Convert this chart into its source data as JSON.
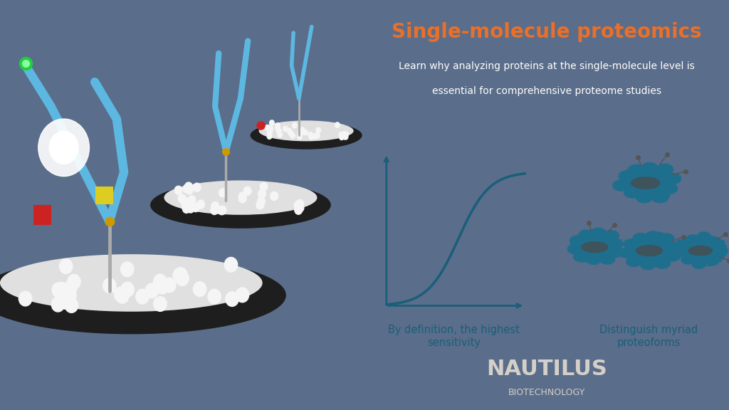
{
  "title": "Single-molecule proteomics",
  "subtitle_line1": "Learn why analyzing proteins at the single-molecule level is",
  "subtitle_line2": "essential for comprehensive proteome studies",
  "label1": "By definition, the highest\nsensitivity",
  "label2": "Distinguish myriad\nproteoforms",
  "title_color": "#E8702A",
  "subtitle_color": "#FFFFFF",
  "header_bg": "#5a6d8a",
  "content_bg": "#FFFFFF",
  "footer_bg": "#5a6d8a",
  "nautilus_text": "NAUTILUS",
  "biotechnology_text": "BIOTECHNOLOGY",
  "logo_color": "#d4cfc8",
  "curve_color": "#1a5f7a",
  "curve_linewidth": 2.5,
  "axes_color": "#1a5f7a",
  "protein_color_main": "#1e6f8e",
  "protein_color_dark": "#4a4a4a",
  "dot_color": "#555555",
  "label_color": "#1a5f7a",
  "left_bg": "#909090"
}
